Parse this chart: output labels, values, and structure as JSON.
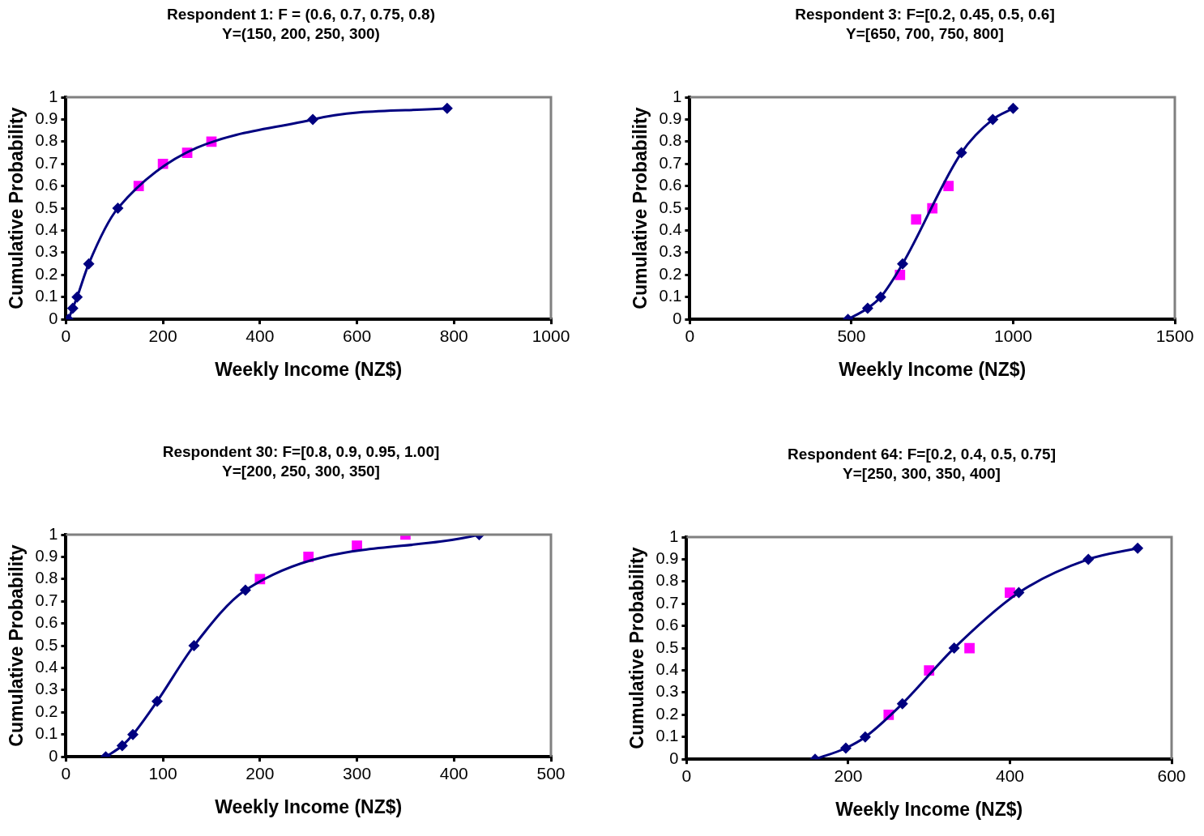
{
  "chart_data": [
    {
      "type": "line",
      "title": "Respondent 1: F = (0.6, 0.7, 0.75, 0.8)\nY=(150, 200, 250, 300)",
      "xlabel": "Weekly Income (NZ$)",
      "ylabel": "Cumulative Probability",
      "xlim": [
        0,
        1000
      ],
      "xticks": [
        0,
        200,
        400,
        600,
        800,
        1000
      ],
      "ylim": [
        0,
        1
      ],
      "yticks": [
        0,
        0.1,
        0.2,
        0.3,
        0.4,
        0.5,
        0.6,
        0.7,
        0.8,
        0.9,
        1
      ],
      "grid": false,
      "legend": false,
      "series": [
        {
          "type": "line",
          "marker": "diamond",
          "color": "#000080",
          "x": [
            5,
            14,
            23,
            47,
            107,
            509,
            786
          ],
          "values": [
            0,
            0.05,
            0.1,
            0.25,
            0.5,
            0.9,
            0.95
          ]
        },
        {
          "type": "scatter",
          "marker": "square",
          "color": "#ff00ff",
          "x": [
            150,
            200,
            250,
            300
          ],
          "values": [
            0.6,
            0.7,
            0.75,
            0.8
          ]
        }
      ]
    },
    {
      "type": "line",
      "title": "Respondent 3: F=[0.2, 0.45, 0.5, 0.6]\nY=[650, 700, 750, 800]",
      "xlabel": "Weekly Income (NZ$)",
      "ylabel": "Cumulative Probability",
      "xlim": [
        0,
        1500
      ],
      "xticks": [
        0,
        500,
        1000,
        1500
      ],
      "ylim": [
        0,
        1
      ],
      "yticks": [
        0,
        0.1,
        0.2,
        0.3,
        0.4,
        0.5,
        0.6,
        0.7,
        0.8,
        0.9,
        1
      ],
      "grid": false,
      "legend": false,
      "series": [
        {
          "type": "line",
          "marker": "diamond",
          "color": "#000080",
          "x": [
            489,
            550,
            590,
            658,
            840,
            937,
            1000
          ],
          "values": [
            0,
            0.05,
            0.1,
            0.25,
            0.75,
            0.9,
            0.95
          ]
        },
        {
          "type": "scatter",
          "marker": "square",
          "color": "#ff00ff",
          "x": [
            650,
            700,
            750,
            800
          ],
          "values": [
            0.2,
            0.45,
            0.5,
            0.6
          ]
        }
      ]
    },
    {
      "type": "line",
      "title": "Respondent 30: F=[0.8, 0.9, 0.95, 1.00]\nY=[200, 250, 300, 350]",
      "xlabel": "Weekly Income (NZ$)",
      "ylabel": "Cumulative Probability",
      "xlim": [
        0,
        500
      ],
      "xticks": [
        0,
        100,
        200,
        300,
        400,
        500
      ],
      "ylim": [
        0,
        1
      ],
      "yticks": [
        0,
        0.1,
        0.2,
        0.3,
        0.4,
        0.5,
        0.6,
        0.7,
        0.8,
        0.9,
        1
      ],
      "grid": false,
      "legend": false,
      "series": [
        {
          "type": "line",
          "marker": "diamond",
          "color": "#000080",
          "x": [
            41,
            58,
            69,
            94,
            132,
            185,
            426
          ],
          "values": [
            0,
            0.05,
            0.1,
            0.25,
            0.5,
            0.75,
            1
          ]
        },
        {
          "type": "scatter",
          "marker": "square",
          "color": "#ff00ff",
          "x": [
            200,
            250,
            300,
            350
          ],
          "values": [
            0.8,
            0.9,
            0.95,
            1
          ]
        }
      ]
    },
    {
      "type": "line",
      "title": "Respondent 64: F=[0.2, 0.4, 0.5, 0.75]\nY=[250, 300, 350, 400]",
      "xlabel": "Weekly Income (NZ$)",
      "ylabel": "Cumulative Probability",
      "xlim": [
        0,
        600
      ],
      "xticks": [
        0,
        200,
        400,
        600
      ],
      "ylim": [
        0,
        1
      ],
      "yticks": [
        0,
        0.1,
        0.2,
        0.3,
        0.4,
        0.5,
        0.6,
        0.7,
        0.8,
        0.9,
        1
      ],
      "grid": false,
      "legend": false,
      "series": [
        {
          "type": "line",
          "marker": "diamond",
          "color": "#000080",
          "x": [
            159,
            197,
            221,
            267,
            331,
            411,
            497,
            558
          ],
          "values": [
            0,
            0.05,
            0.1,
            0.25,
            0.5,
            0.75,
            0.9,
            0.95
          ]
        },
        {
          "type": "scatter",
          "marker": "square",
          "color": "#ff00ff",
          "x": [
            250,
            300,
            350,
            400
          ],
          "values": [
            0.2,
            0.4,
            0.5,
            0.75
          ]
        }
      ]
    }
  ]
}
